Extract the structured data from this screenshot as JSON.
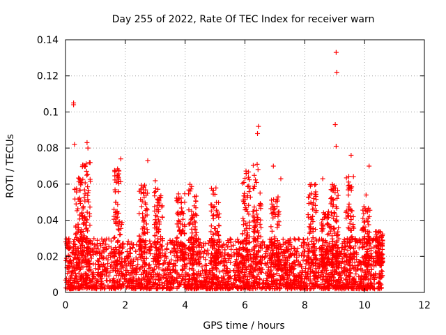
{
  "chart_data": {
    "type": "scatter",
    "title": "Day 255 of 2022, Rate Of TEC Index for receiver warn",
    "xlabel": "GPS time / hours",
    "ylabel": "ROTI / TECUs",
    "xlim": [
      0,
      12
    ],
    "ylim": [
      0,
      0.14
    ],
    "x_ticks": [
      0,
      2,
      4,
      6,
      8,
      10,
      12
    ],
    "y_ticks": [
      0,
      0.02,
      0.04,
      0.06,
      0.08,
      0.1,
      0.12,
      0.14
    ],
    "x_tick_labels": [
      "0",
      "2",
      "4",
      "6",
      "8",
      "10",
      "12"
    ],
    "y_tick_labels": [
      "0",
      "0.02",
      "0.04",
      "0.06",
      "0.08",
      "0.1",
      "0.12",
      "0.14"
    ],
    "grid": true,
    "marker": "+",
    "marker_color": "#ff0000",
    "data_x_range": [
      0,
      10.6
    ],
    "notable_points": [
      {
        "x": 0.27,
        "y": 0.105
      },
      {
        "x": 0.27,
        "y": 0.104
      },
      {
        "x": 0.3,
        "y": 0.082
      },
      {
        "x": 0.72,
        "y": 0.083
      },
      {
        "x": 0.75,
        "y": 0.08
      },
      {
        "x": 0.8,
        "y": 0.072
      },
      {
        "x": 1.85,
        "y": 0.074
      },
      {
        "x": 2.75,
        "y": 0.073
      },
      {
        "x": 6.45,
        "y": 0.092
      },
      {
        "x": 6.42,
        "y": 0.088
      },
      {
        "x": 6.95,
        "y": 0.07
      },
      {
        "x": 7.2,
        "y": 0.063
      },
      {
        "x": 8.6,
        "y": 0.063
      },
      {
        "x": 9.05,
        "y": 0.133
      },
      {
        "x": 9.07,
        "y": 0.122
      },
      {
        "x": 9.02,
        "y": 0.093
      },
      {
        "x": 9.05,
        "y": 0.081
      },
      {
        "x": 9.55,
        "y": 0.076
      },
      {
        "x": 10.15,
        "y": 0.07
      },
      {
        "x": 10.05,
        "y": 0.054
      }
    ],
    "cluster_bursts": [
      {
        "x": 0.45,
        "peak": 0.065
      },
      {
        "x": 0.7,
        "peak": 0.072
      },
      {
        "x": 1.75,
        "peak": 0.07
      },
      {
        "x": 2.6,
        "peak": 0.06
      },
      {
        "x": 3.1,
        "peak": 0.062
      },
      {
        "x": 3.85,
        "peak": 0.055
      },
      {
        "x": 4.25,
        "peak": 0.062
      },
      {
        "x": 5.0,
        "peak": 0.058
      },
      {
        "x": 6.05,
        "peak": 0.068
      },
      {
        "x": 6.4,
        "peak": 0.072
      },
      {
        "x": 7.0,
        "peak": 0.053
      },
      {
        "x": 8.25,
        "peak": 0.062
      },
      {
        "x": 8.7,
        "peak": 0.045
      },
      {
        "x": 9.0,
        "peak": 0.06
      },
      {
        "x": 9.5,
        "peak": 0.065
      },
      {
        "x": 10.05,
        "peak": 0.048
      },
      {
        "x": 10.5,
        "peak": 0.035
      }
    ],
    "baseline_band": [
      0.002,
      0.03
    ]
  }
}
